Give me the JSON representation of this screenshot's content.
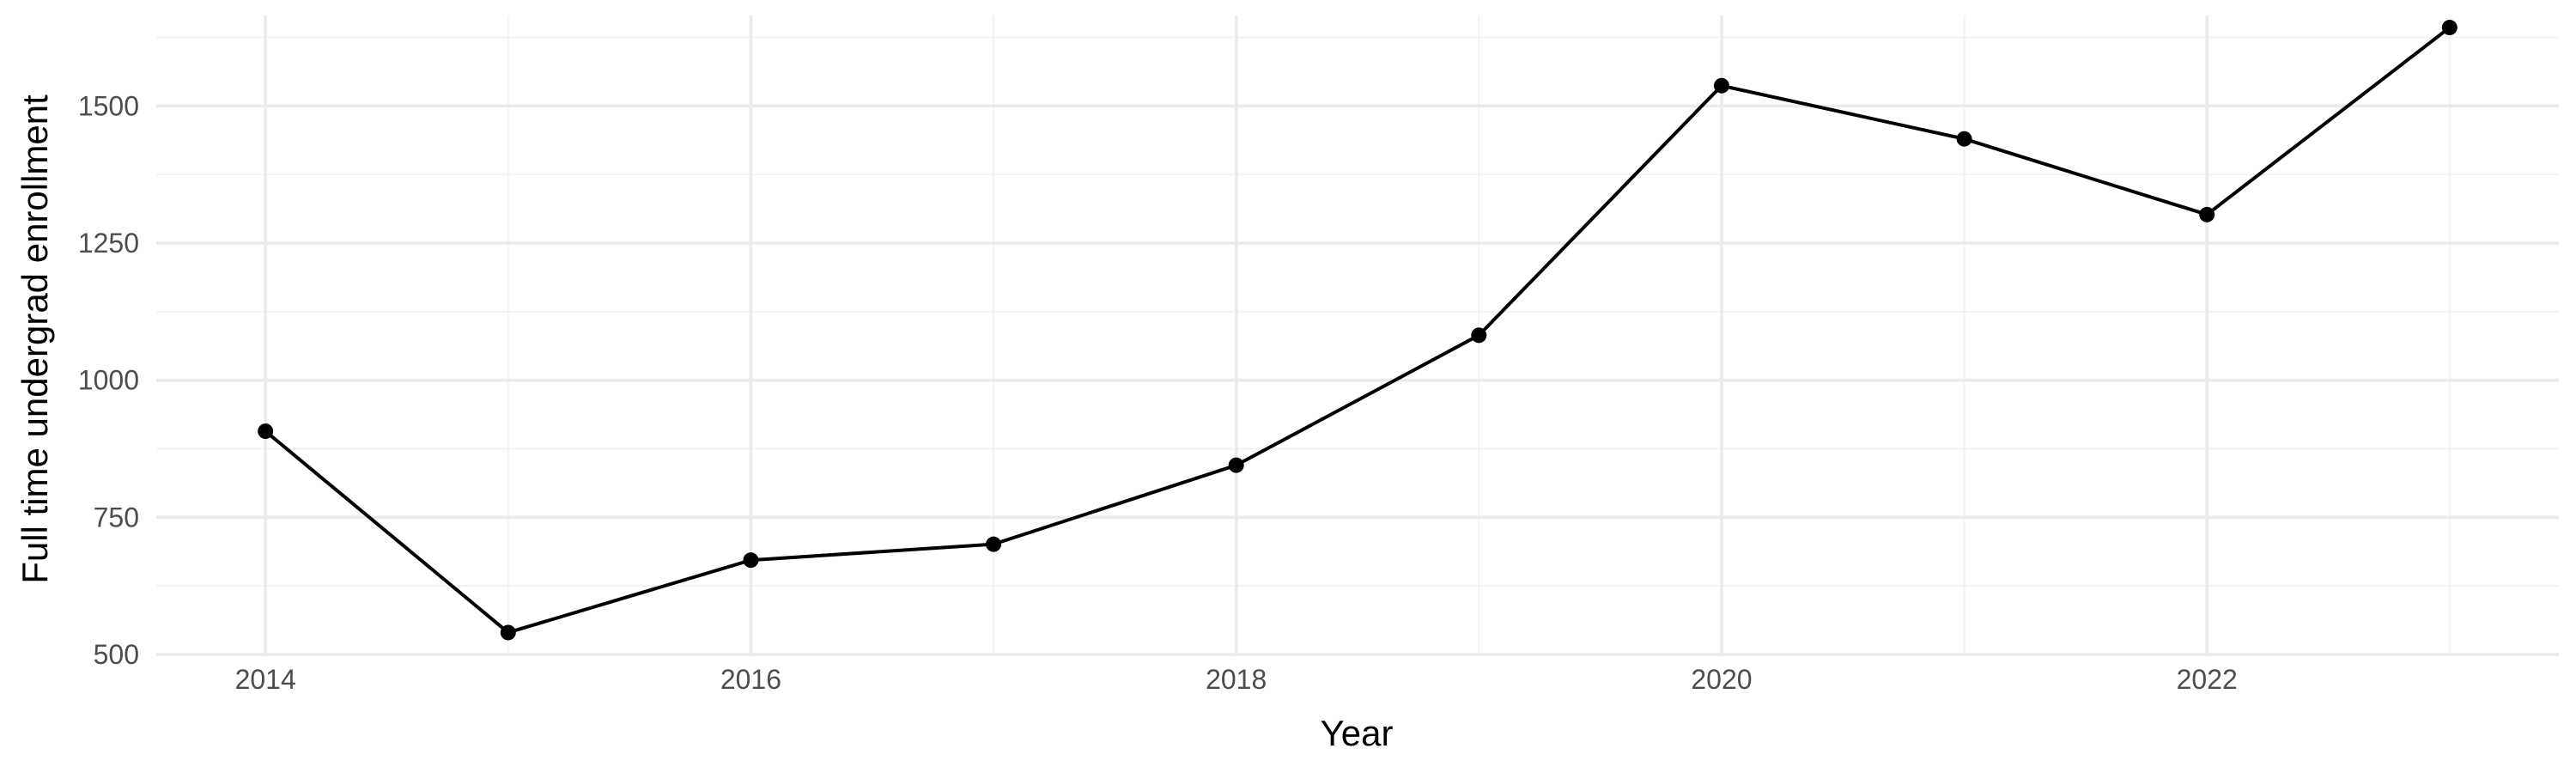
{
  "chart_data": {
    "type": "line",
    "title": "",
    "xlabel": "Year",
    "ylabel": "Full time undergrad enrollment",
    "x": [
      2014,
      2015,
      2016,
      2017,
      2018,
      2019,
      2020,
      2021,
      2022,
      2023
    ],
    "series": [
      {
        "values": [
          907,
          540,
          672,
          701,
          845,
          1082,
          1537,
          1440,
          1302,
          1643
        ],
        "color": "#000000"
      }
    ],
    "xlim": [
      2013.55,
      2023.45
    ],
    "ylim": [
      500,
      1665
    ],
    "x_ticks": [
      2014,
      2016,
      2018,
      2020,
      2022
    ],
    "x_tick_labels": [
      "2014",
      "2016",
      "2018",
      "2020",
      "2022"
    ],
    "y_ticks": [
      500,
      750,
      1000,
      1250,
      1500
    ],
    "y_tick_labels": [
      "500",
      "750",
      "1000",
      "1250",
      "1500"
    ],
    "grid": true,
    "legend": "none"
  }
}
